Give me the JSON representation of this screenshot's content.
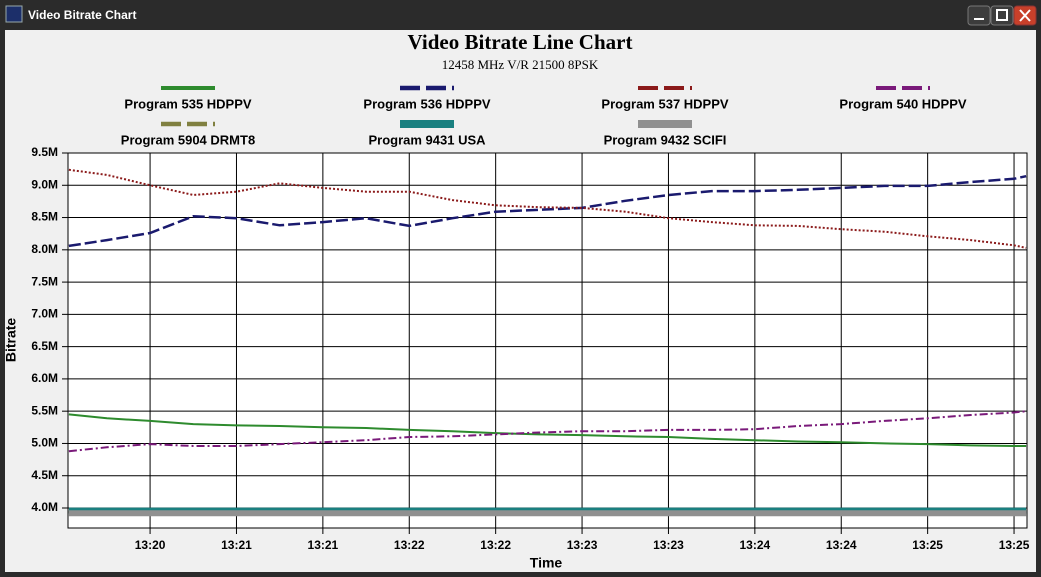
{
  "window_title": "Video Bitrate Chart",
  "chart_data": {
    "type": "line",
    "title": "Video Bitrate Line Chart",
    "subtitle": "12458 MHz V/R 21500 8PSK",
    "x_label": "Time",
    "y_label": "Bitrate",
    "grid": true,
    "x": [
      19.53,
      19.75,
      20.0,
      20.25,
      20.5,
      20.75,
      21.0,
      21.25,
      21.5,
      21.75,
      22.0,
      22.25,
      22.5,
      22.75,
      23.0,
      23.25,
      23.5,
      23.75,
      24.0,
      24.25,
      24.5,
      24.75,
      25.0,
      25.07
    ],
    "xlim": [
      19.525,
      25.075
    ],
    "xticks": [
      {
        "value": 20.0,
        "label": "13:20"
      },
      {
        "value": 20.5,
        "label": "13:21"
      },
      {
        "value": 21.0,
        "label": "13:21"
      },
      {
        "value": 21.5,
        "label": "13:22"
      },
      {
        "value": 22.0,
        "label": "13:22"
      },
      {
        "value": 22.5,
        "label": "13:23"
      },
      {
        "value": 23.0,
        "label": "13:23"
      },
      {
        "value": 23.5,
        "label": "13:24"
      },
      {
        "value": 24.0,
        "label": "13:24"
      },
      {
        "value": 24.5,
        "label": "13:25"
      },
      {
        "value": 25.0,
        "label": "13:25"
      }
    ],
    "ylim": [
      3690000,
      9500000
    ],
    "yticks": [
      {
        "value": 4000000,
        "label": "4.0M"
      },
      {
        "value": 4500000,
        "label": "4.5M"
      },
      {
        "value": 5000000,
        "label": "5.0M"
      },
      {
        "value": 5500000,
        "label": "5.5M"
      },
      {
        "value": 6000000,
        "label": "6.0M"
      },
      {
        "value": 6500000,
        "label": "6.5M"
      },
      {
        "value": 7000000,
        "label": "7.0M"
      },
      {
        "value": 7500000,
        "label": "7.5M"
      },
      {
        "value": 8000000,
        "label": "8.0M"
      },
      {
        "value": 8500000,
        "label": "8.5M"
      },
      {
        "value": 9000000,
        "label": "9.0M"
      },
      {
        "value": 9500000,
        "label": "9.5M"
      }
    ],
    "series": [
      {
        "name": "Program 535 HDPPV",
        "color": "#2e8b2e",
        "style": "solid",
        "values": [
          5450000,
          5390000,
          5350000,
          5300000,
          5280000,
          5270000,
          5250000,
          5240000,
          5210000,
          5190000,
          5160000,
          5140000,
          5130000,
          5110000,
          5100000,
          5070000,
          5050000,
          5030000,
          5020000,
          5000000,
          4990000,
          4970000,
          4960000,
          4960000
        ]
      },
      {
        "name": "Program 536 HDPPV",
        "color": "#1a1a6e",
        "style": "dashed",
        "values": [
          8060000,
          8150000,
          8260000,
          8520000,
          8490000,
          8380000,
          8430000,
          8490000,
          8370000,
          8490000,
          8590000,
          8620000,
          8650000,
          8760000,
          8850000,
          8910000,
          8910000,
          8930000,
          8960000,
          8990000,
          8990000,
          9050000,
          9100000,
          9140000
        ]
      },
      {
        "name": "Program 537 HDPPV",
        "color": "#8b1a1a",
        "style": "dotted",
        "values": [
          9240000,
          9160000,
          9000000,
          8850000,
          8900000,
          9030000,
          8960000,
          8900000,
          8900000,
          8770000,
          8690000,
          8660000,
          8650000,
          8590000,
          8490000,
          8430000,
          8380000,
          8370000,
          8320000,
          8280000,
          8210000,
          8150000,
          8070000,
          8030000
        ]
      },
      {
        "name": "Program 540 HDPPV",
        "color": "#7a1a7a",
        "style": "dashdot",
        "values": [
          4880000,
          4940000,
          4990000,
          4960000,
          4960000,
          4990000,
          5020000,
          5050000,
          5100000,
          5110000,
          5140000,
          5170000,
          5190000,
          5190000,
          5210000,
          5210000,
          5220000,
          5270000,
          5300000,
          5350000,
          5390000,
          5440000,
          5480000,
          5500000
        ]
      },
      {
        "name": "Program 5904 DRMT8",
        "color": "#808040",
        "style": "dashed",
        "values": [
          3940000,
          3940000,
          3940000,
          3940000,
          3940000,
          3940000,
          3940000,
          3940000,
          3940000,
          3940000,
          3940000,
          3940000,
          3940000,
          3940000,
          3940000,
          3940000,
          3940000,
          3940000,
          3940000,
          3940000,
          3940000,
          3940000,
          3940000,
          3940000
        ]
      },
      {
        "name": "Program 9431 USA",
        "color": "#1a8080",
        "style": "thick",
        "values": [
          3960000,
          3960000,
          3960000,
          3960000,
          3960000,
          3960000,
          3960000,
          3960000,
          3960000,
          3960000,
          3960000,
          3960000,
          3960000,
          3960000,
          3960000,
          3960000,
          3960000,
          3960000,
          3960000,
          3960000,
          3960000,
          3960000,
          3960000,
          3960000
        ]
      },
      {
        "name": "Program 9432 SCIFI",
        "color": "#909090",
        "style": "thick",
        "values": [
          3920000,
          3920000,
          3920000,
          3920000,
          3920000,
          3920000,
          3920000,
          3920000,
          3920000,
          3920000,
          3920000,
          3920000,
          3920000,
          3920000,
          3920000,
          3920000,
          3920000,
          3920000,
          3920000,
          3920000,
          3920000,
          3920000,
          3920000,
          3920000
        ]
      }
    ]
  }
}
